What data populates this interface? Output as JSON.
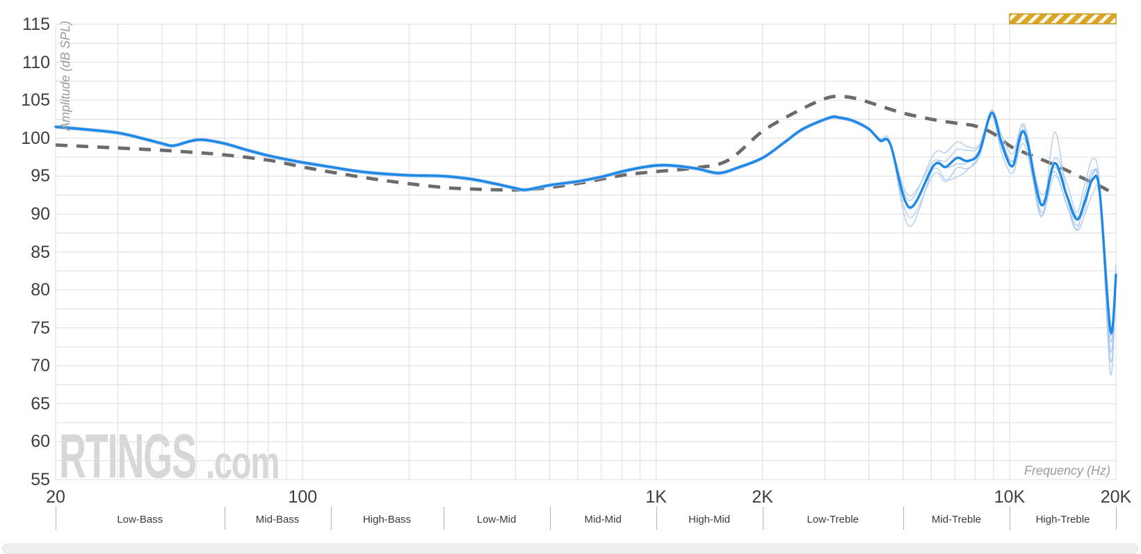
{
  "page": {
    "background": "#ffffff"
  },
  "watermark": {
    "brand": "RTINGS",
    "suffix": ".com"
  },
  "axes": {
    "y_title": "Amplitude (dB SPL)",
    "x_title": "Frequency (Hz)",
    "y_ticks": [
      115,
      110,
      105,
      100,
      95,
      90,
      85,
      80,
      75,
      70,
      65,
      60,
      55
    ],
    "x_ticks": [
      {
        "label": "20",
        "freq": 20
      },
      {
        "label": "100",
        "freq": 100
      },
      {
        "label": "1K",
        "freq": 1000
      },
      {
        "label": "2K",
        "freq": 2000
      },
      {
        "label": "10K",
        "freq": 10000
      },
      {
        "label": "20K",
        "freq": 20000
      }
    ]
  },
  "bands": {
    "boundaries": [
      20,
      60,
      120,
      250,
      500,
      1000,
      2000,
      5000,
      10000,
      20000
    ],
    "labels": [
      "Low-Bass",
      "Mid-Bass",
      "High-Bass",
      "Low-Mid",
      "Mid-Mid",
      "High-Mid",
      "Low-Treble",
      "Mid-Treble",
      "High-Treble"
    ]
  },
  "highlight_band": {
    "from": 10000,
    "to": 20000,
    "fill": "#D8A527",
    "stripe": "#FCF7E8",
    "border": "#C8981B"
  },
  "colors": {
    "grid": "#dcdcdc",
    "target": "#6B6B6B",
    "average": "#1E88E5",
    "passes": "#A9C7F1",
    "tick_text": "#3e3e3e",
    "band_text": "#3a3a3a",
    "axis_title_text": "#9b9b9b",
    "watermark": "#d7d7d7"
  },
  "chart_data": {
    "type": "line",
    "x_scale": "log",
    "xlim": [
      20,
      20000
    ],
    "ylim": [
      55,
      115
    ],
    "xlabel": "Frequency (Hz)",
    "ylabel": "Amplitude (dB SPL)",
    "grid": {
      "h_step": 2.5,
      "v_lines": [
        20,
        30,
        40,
        50,
        60,
        70,
        80,
        90,
        100,
        200,
        300,
        400,
        500,
        600,
        700,
        800,
        900,
        1000,
        2000,
        3000,
        4000,
        5000,
        6000,
        7000,
        8000,
        9000,
        10000,
        20000
      ]
    },
    "legend": "none",
    "freqs": [
      20,
      25,
      30,
      35,
      40,
      43,
      48,
      52,
      60,
      70,
      80,
      90,
      100,
      120,
      140,
      160,
      200,
      250,
      300,
      350,
      400,
      430,
      500,
      600,
      700,
      800,
      900,
      1000,
      1100,
      1300,
      1500,
      1700,
      2000,
      2300,
      2600,
      3100,
      3300,
      3600,
      4000,
      4300,
      4600,
      5200,
      6100,
      6600,
      7100,
      7600,
      8200,
      8900,
      9500,
      10200,
      11000,
      12300,
      13400,
      14500,
      15500,
      16300,
      17200,
      18000,
      19300,
      20000
    ],
    "average": {
      "name": "average",
      "values": [
        101.5,
        101.1,
        100.7,
        100.0,
        99.3,
        99.0,
        99.6,
        99.8,
        99.3,
        98.4,
        97.7,
        97.2,
        96.8,
        96.2,
        95.7,
        95.4,
        95.1,
        95.0,
        94.6,
        94.0,
        93.4,
        93.2,
        93.8,
        94.3,
        94.9,
        95.6,
        96.1,
        96.4,
        96.4,
        96.0,
        95.4,
        96.1,
        97.4,
        99.4,
        101.2,
        102.7,
        102.7,
        102.3,
        101.2,
        99.7,
        99.2,
        90.9,
        96.4,
        96.2,
        97.4,
        97.0,
        98.1,
        103.3,
        99.3,
        96.3,
        100.8,
        91.2,
        96.7,
        92.5,
        89.3,
        91.5,
        94.6,
        92.8,
        74.6,
        82.0
      ]
    },
    "passes": [
      {
        "name": "pass-1",
        "base_offset": 0.18,
        "deviations": {
          "4600": 0,
          "5200": -2.7,
          "6000": -0.4,
          "6600": 0.6,
          "7600": 1.2,
          "8500": 0.3,
          "9500": -0.8,
          "10700": 0.5,
          "12300": -1.8,
          "13000": 0,
          "13400": 3.9,
          "14200": 0,
          "15500": -1.0,
          "17000": 0.5,
          "18500": 0,
          "19300": -5.8,
          "20000": 0.3
        }
      },
      {
        "name": "pass-2",
        "base_offset": -0.2,
        "deviations": {
          "6000": 0,
          "6600": -1.5,
          "7100": -2.3,
          "7600": -1.0,
          "8200": 0,
          "9500": 0.7,
          "10200": 0.8,
          "11000": -0.7,
          "12300": 1.6,
          "13400": -0.9,
          "15500": -1.2,
          "16300": 1.2,
          "17200": 1.4,
          "18000": 0,
          "19300": -2.5,
          "20000": 1.5
        }
      },
      {
        "name": "pass-3",
        "base_offset": 0.1,
        "deviations": {
          "5000": 0,
          "5200": 0.8,
          "6100": 1.4,
          "6600": 1.8,
          "7100": 2.0,
          "7600": 1.8,
          "8200": 0.9,
          "8900": 0.2,
          "9500": 1.0,
          "10200": 1.5,
          "11000": 0.5,
          "12300": -1.5,
          "13400": 0.5,
          "14500": 1.5,
          "15500": 0.8,
          "16300": 2.2,
          "17200": 2.6,
          "18000": 1.0,
          "19300": -0.5,
          "20000": 1.2
        }
      },
      {
        "name": "pass-4",
        "base_offset": -0.12,
        "deviations": {
          "4300": 0.4,
          "5200": -1.2,
          "6100": -1.0,
          "6600": -1.8,
          "7100": -1.2,
          "8200": -0.5,
          "8900": -0.3,
          "9500": -1.2,
          "10200": -0.8,
          "11000": -1.5,
          "12300": -0.8,
          "13400": -1.5,
          "14500": -1.0,
          "15500": -1.3,
          "17200": -1.8,
          "18000": -0.8,
          "19300": -3.8,
          "20000": -0.8
        }
      },
      {
        "name": "pass-5",
        "base_offset": 0,
        "deviations": {
          "5200": 1.5,
          "6100": 0.6,
          "7100": -0.8,
          "8200": 0.4,
          "8900": 0.4,
          "9500": 0.3,
          "11000": 1.0,
          "12300": 0.6,
          "13400": -0.5,
          "15500": 0.4,
          "16300": -1.0,
          "17200": 0.8,
          "18600": 0.5,
          "19300": -1.2,
          "20000": 0.5
        }
      }
    ],
    "target": {
      "name": "target",
      "dash": [
        17,
        13
      ],
      "x": [
        20,
        30,
        40,
        50,
        60,
        80,
        100,
        125,
        160,
        200,
        250,
        300,
        350,
        420,
        500,
        630,
        800,
        1000,
        1300,
        1600,
        2000,
        2500,
        3000,
        3300,
        3700,
        4200,
        5000,
        6000,
        7000,
        8000,
        9000,
        10000,
        11000,
        12300,
        14000,
        16000,
        18000,
        20000
      ],
      "values": [
        99.1,
        98.7,
        98.4,
        98.1,
        97.8,
        97.1,
        96.2,
        95.4,
        94.6,
        94.0,
        93.5,
        93.3,
        93.2,
        93.2,
        93.5,
        94.2,
        95.1,
        95.6,
        96.1,
        97.1,
        100.9,
        103.5,
        105.2,
        105.5,
        105.2,
        104.4,
        103.3,
        102.5,
        102.0,
        101.6,
        100.6,
        99.0,
        98.1,
        97.2,
        96.1,
        94.8,
        93.7,
        92.5
      ]
    }
  }
}
